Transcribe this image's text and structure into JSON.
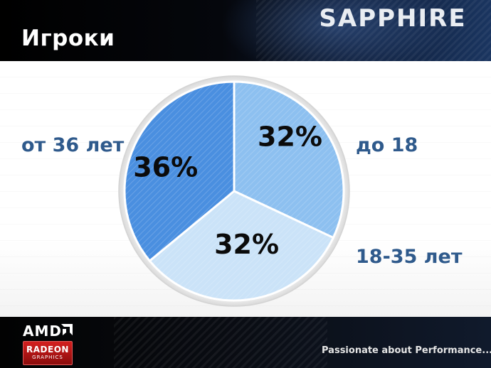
{
  "header": {
    "title": "Игроки",
    "brand": "SAPPHIRE"
  },
  "chart_data": {
    "type": "pie",
    "categories": [
      "до 18",
      "18-35 лет",
      "от 36 лет"
    ],
    "values": [
      32,
      32,
      36
    ],
    "value_labels": [
      "32%",
      "32%",
      "36%"
    ],
    "colors": [
      "#8dc0f0",
      "#cbe3f8",
      "#4a8fe0"
    ],
    "start_angle_deg": 0,
    "direction": "clockwise",
    "legend": "labels beside slices"
  },
  "footer": {
    "amd": "AMD",
    "radeon": "RADEON",
    "graphics": "GRAPHICS",
    "slogan": "Passionate about Performance....."
  }
}
